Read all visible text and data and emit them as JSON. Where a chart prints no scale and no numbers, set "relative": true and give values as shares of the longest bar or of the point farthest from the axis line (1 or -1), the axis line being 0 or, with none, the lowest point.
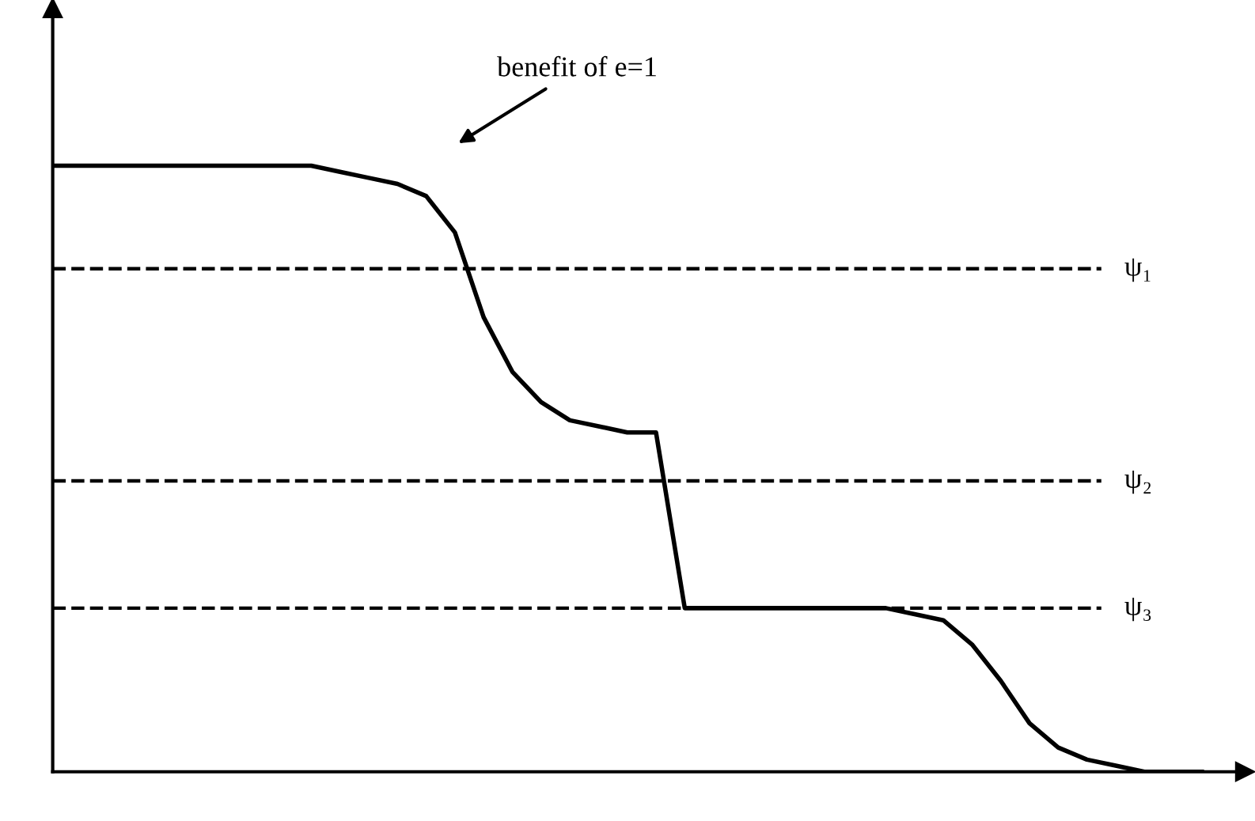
{
  "chart_data": {
    "type": "line",
    "relative": true,
    "tick_labels": false,
    "legend": false,
    "line_style": "solid",
    "marker": "none",
    "categories": [
      null,
      null,
      null,
      null,
      null,
      null,
      null,
      null,
      null,
      null,
      null,
      null,
      null,
      null,
      null,
      null,
      null,
      null,
      null,
      null,
      null,
      null,
      null,
      null,
      null,
      null,
      null,
      null,
      null,
      null,
      null,
      null,
      null,
      null,
      null,
      null,
      null,
      null,
      null,
      null,
      null
    ],
    "series": [
      {
        "color": "#000000",
        "values": [
          1.0,
          1.0,
          1.0,
          1.0,
          1.0,
          1.0,
          1.0,
          1.0,
          1.0,
          1.0,
          0.99,
          0.98,
          0.97,
          0.95,
          0.89,
          0.75,
          0.66,
          0.61,
          0.58,
          0.57,
          0.56,
          0.56,
          0.27,
          0.27,
          0.27,
          0.27,
          0.27,
          0.27,
          0.27,
          0.27,
          0.26,
          0.25,
          0.21,
          0.15,
          0.08,
          0.04,
          0.02,
          0.01,
          0.0,
          0.0,
          0.0
        ]
      }
    ],
    "ref_lines": [
      {
        "axis": "y",
        "value": 0.83,
        "label": "ψ₁",
        "color": "#000000",
        "line_style": "dashed"
      },
      {
        "axis": "y",
        "value": 0.48,
        "label": "ψ₂",
        "color": "#000000",
        "line_style": "dashed"
      },
      {
        "axis": "y",
        "value": 0.27,
        "label": "ψ₃",
        "color": "#000000",
        "line_style": "dashed"
      }
    ],
    "annotations": [
      "benefit of e=1"
    ]
  }
}
